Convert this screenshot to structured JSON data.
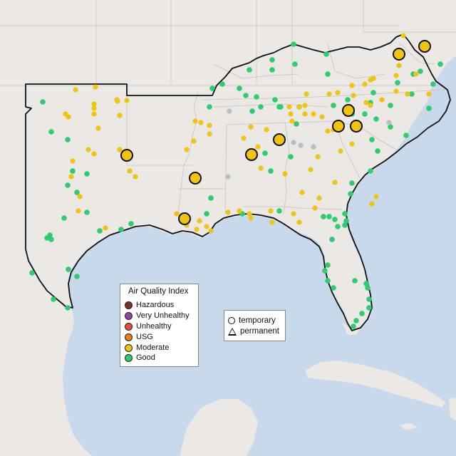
{
  "map": {
    "aqi_legend": {
      "title": "Air Quality Index",
      "items": [
        {
          "label": "Hazardous",
          "color": "#7a2e2e"
        },
        {
          "label": "Very Unhealthy",
          "color": "#8e44ad"
        },
        {
          "label": "Unhealthy",
          "color": "#e74c3c"
        },
        {
          "label": "USG",
          "color": "#e67e22"
        },
        {
          "label": "Moderate",
          "color": "#f1c40f"
        },
        {
          "label": "Good",
          "color": "#2ecc71"
        }
      ]
    },
    "site_legend": {
      "temporary": "temporary",
      "permanent": "permanent"
    },
    "colors": {
      "water": "#c7d9ea",
      "land": "#ece8e5",
      "nodata": "#bdbdbd"
    }
  }
}
